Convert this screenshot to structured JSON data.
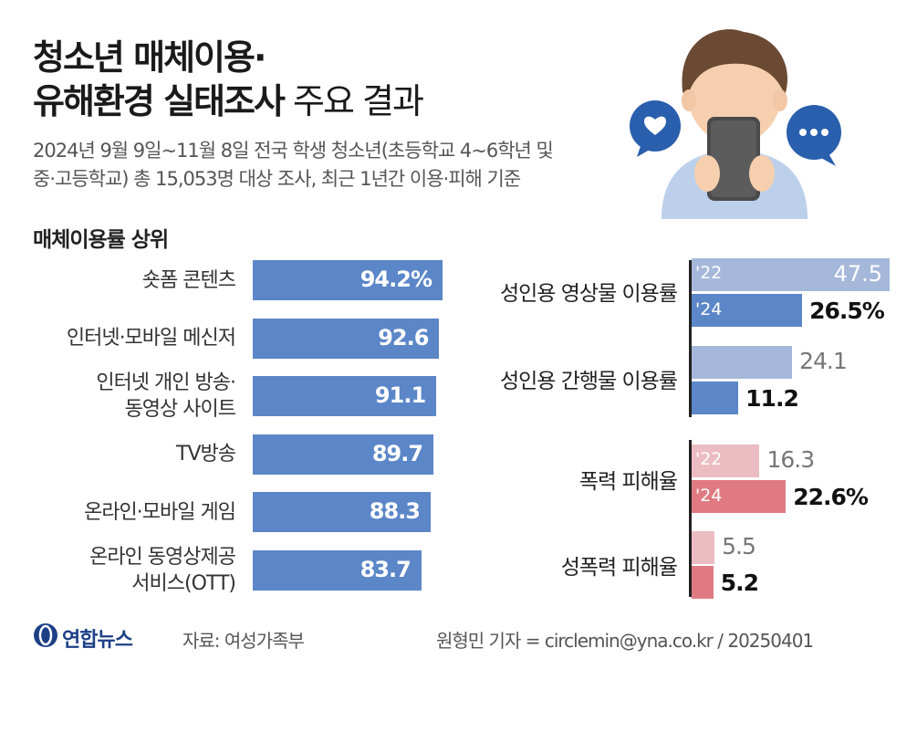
{
  "header": {
    "title_line1": "청소년 매체이용·",
    "title_line2_bold": "유해환경 실태조사",
    "title_line2_light": " 주요 결과",
    "subtitle_line1": "2024년 9월 9일~11월 8일 전국 학생 청소년(초등학교 4~6학년 및",
    "subtitle_line2": "중·고등학교) 총 15,053명 대상 조사, 최근 1년간 이용·피해 기준"
  },
  "left_section": {
    "title": "매체이용률 상위"
  },
  "chart_data": [
    {
      "type": "bar",
      "orientation": "horizontal",
      "title": "매체이용률 상위",
      "categories": [
        "숏폼 콘텐츠",
        "인터넷·모바일 메신저",
        "인터넷 개인 방송·동영상 사이트",
        "TV방송",
        "온라인·모바일 게임",
        "온라인 동영상제공 서비스(OTT)"
      ],
      "category_lines": [
        [
          "숏폼 콘텐츠"
        ],
        [
          "인터넷·모바일 메신저"
        ],
        [
          "인터넷 개인 방송·",
          "동영상 사이트"
        ],
        [
          "TV방송"
        ],
        [
          "온라인·모바일 게임"
        ],
        [
          "온라인 동영상제공",
          "서비스(OTT)"
        ]
      ],
      "values": [
        94.2,
        92.6,
        91.1,
        89.7,
        88.3,
        83.7
      ],
      "value_labels": [
        "94.2%",
        "92.6",
        "91.1",
        "89.7",
        "88.3",
        "83.7"
      ],
      "xlim": [
        0,
        100
      ],
      "color": "#5b86c8"
    },
    {
      "type": "bar",
      "orientation": "horizontal",
      "categories": [
        "성인용 영상물 이용률",
        "성인용 간행물 이용률"
      ],
      "series": [
        {
          "name": "'22",
          "values": [
            47.5,
            24.1
          ],
          "labels": [
            "47.5",
            "24.1"
          ],
          "color": "#a5b8da"
        },
        {
          "name": "'24",
          "values": [
            26.5,
            11.2
          ],
          "labels": [
            "26.5%",
            "11.2"
          ],
          "color": "#5b86c8"
        }
      ],
      "xlim": [
        0,
        47.5
      ]
    },
    {
      "type": "bar",
      "orientation": "horizontal",
      "categories": [
        "폭력 피해율",
        "성폭력 피해율"
      ],
      "series": [
        {
          "name": "'22",
          "values": [
            16.3,
            5.5
          ],
          "labels": [
            "16.3",
            "5.5"
          ],
          "color": "#ecbcc3"
        },
        {
          "name": "'24",
          "values": [
            22.6,
            5.2
          ],
          "labels": [
            "22.6%",
            "5.2"
          ],
          "color": "#e07a82"
        }
      ],
      "xlim": [
        0,
        47.5
      ]
    }
  ],
  "footer": {
    "logo_text": "연합뉴스",
    "source": "자료: 여성가족부",
    "credit": "원형민 기자 = circlemin@yna.co.kr / 20250401"
  }
}
